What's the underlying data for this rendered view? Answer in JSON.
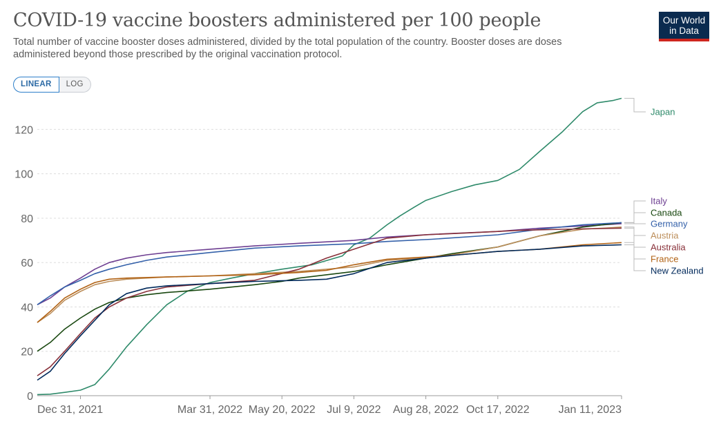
{
  "header": {
    "title": "COVID-19 vaccine boosters administered per 100 people",
    "subtitle": "Total number of vaccine booster doses administered, divided by the total population of the country. Booster doses are doses administered beyond those prescribed by the original vaccination protocol."
  },
  "logo": {
    "line1": "Our World",
    "line2": "in Data",
    "bg_color": "#0b2b4f",
    "accent_color": "#ce261e"
  },
  "controls": {
    "linear_label": "LINEAR",
    "log_label": "LOG",
    "selected": "LINEAR"
  },
  "chart_data": {
    "type": "line",
    "title": "COVID-19 vaccine boosters administered per 100 people",
    "xlabel": "",
    "ylabel": "",
    "ylim": [
      0,
      136
    ],
    "y_ticks": [
      0,
      20,
      40,
      60,
      80,
      100,
      120
    ],
    "x_ticks": [
      "Dec 31, 2021",
      "Mar 31, 2022",
      "May 20, 2022",
      "Jul 9, 2022",
      "Aug 28, 2022",
      "Oct 17, 2022",
      "Jan 11, 2023"
    ],
    "x_range": [
      "2021-12-01",
      "2023-01-11"
    ],
    "grid": "horizontal dashed",
    "legend": "right, end-of-line labels",
    "series": [
      {
        "name": "Japan",
        "color": "#2e8a6a",
        "points": [
          [
            "2021-12-01",
            0.5
          ],
          [
            "2021-12-10",
            0.7
          ],
          [
            "2021-12-20",
            1.5
          ],
          [
            "2021-12-31",
            2.5
          ],
          [
            "2022-01-10",
            5
          ],
          [
            "2022-01-20",
            12
          ],
          [
            "2022-02-01",
            22
          ],
          [
            "2022-02-15",
            32
          ],
          [
            "2022-03-01",
            41
          ],
          [
            "2022-03-15",
            47
          ],
          [
            "2022-03-31",
            51
          ],
          [
            "2022-04-15",
            53
          ],
          [
            "2022-05-01",
            55
          ],
          [
            "2022-05-20",
            57
          ],
          [
            "2022-06-10",
            59
          ],
          [
            "2022-07-01",
            63
          ],
          [
            "2022-07-09",
            68
          ],
          [
            "2022-07-20",
            71
          ],
          [
            "2022-08-01",
            77
          ],
          [
            "2022-08-10",
            81
          ],
          [
            "2022-08-20",
            85
          ],
          [
            "2022-08-28",
            88
          ],
          [
            "2022-09-15",
            92
          ],
          [
            "2022-10-01",
            95
          ],
          [
            "2022-10-17",
            97
          ],
          [
            "2022-11-01",
            102
          ],
          [
            "2022-11-15",
            110
          ],
          [
            "2022-12-01",
            119
          ],
          [
            "2022-12-15",
            128
          ],
          [
            "2022-12-25",
            132
          ],
          [
            "2023-01-05",
            133
          ],
          [
            "2023-01-11",
            134
          ]
        ]
      },
      {
        "name": "Italy",
        "color": "#6d3e91",
        "points": [
          [
            "2021-12-01",
            41
          ],
          [
            "2021-12-10",
            44
          ],
          [
            "2021-12-20",
            49
          ],
          [
            "2021-12-31",
            53
          ],
          [
            "2022-01-10",
            57
          ],
          [
            "2022-01-20",
            60
          ],
          [
            "2022-02-01",
            62
          ],
          [
            "2022-02-15",
            63.5
          ],
          [
            "2022-03-01",
            64.5
          ],
          [
            "2022-03-31",
            66
          ],
          [
            "2022-05-01",
            67.5
          ],
          [
            "2022-06-01",
            68.7
          ],
          [
            "2022-07-09",
            70
          ],
          [
            "2022-08-01",
            71.5
          ],
          [
            "2022-09-01",
            72.7
          ],
          [
            "2022-10-17",
            74
          ],
          [
            "2022-11-15",
            75.5
          ],
          [
            "2022-12-15",
            76.5
          ],
          [
            "2023-01-11",
            77.5
          ]
        ]
      },
      {
        "name": "Canada",
        "color": "#18470f",
        "points": [
          [
            "2021-12-01",
            20
          ],
          [
            "2021-12-10",
            24
          ],
          [
            "2021-12-20",
            30
          ],
          [
            "2021-12-31",
            35
          ],
          [
            "2022-01-10",
            39
          ],
          [
            "2022-01-20",
            42
          ],
          [
            "2022-02-01",
            44
          ],
          [
            "2022-02-15",
            45.5
          ],
          [
            "2022-03-01",
            46.5
          ],
          [
            "2022-03-31",
            48
          ],
          [
            "2022-05-01",
            50
          ],
          [
            "2022-05-20",
            51.5
          ],
          [
            "2022-06-01",
            53
          ],
          [
            "2022-07-09",
            56
          ],
          [
            "2022-08-01",
            59
          ],
          [
            "2022-08-28",
            62
          ],
          [
            "2022-09-15",
            64
          ],
          [
            "2022-10-17",
            67
          ],
          [
            "2022-11-15",
            72
          ],
          [
            "2022-12-15",
            76
          ],
          [
            "2023-01-11",
            78
          ]
        ]
      },
      {
        "name": "Germany",
        "color": "#3360a9",
        "points": [
          [
            "2021-12-01",
            41
          ],
          [
            "2021-12-10",
            45
          ],
          [
            "2021-12-20",
            49
          ],
          [
            "2021-12-31",
            52
          ],
          [
            "2022-01-10",
            55
          ],
          [
            "2022-01-20",
            57
          ],
          [
            "2022-02-01",
            59
          ],
          [
            "2022-02-15",
            61
          ],
          [
            "2022-03-01",
            62.5
          ],
          [
            "2022-03-31",
            64.5
          ],
          [
            "2022-05-01",
            66.5
          ],
          [
            "2022-06-01",
            67.5
          ],
          [
            "2022-07-09",
            68.5
          ],
          [
            "2022-08-01",
            69.5
          ],
          [
            "2022-09-01",
            70.5
          ],
          [
            "2022-10-17",
            72.5
          ],
          [
            "2022-11-15",
            75
          ],
          [
            "2022-12-15",
            77
          ],
          [
            "2023-01-11",
            78
          ]
        ]
      },
      {
        "name": "Austria",
        "color": "#bc8e5a",
        "points": [
          [
            "2021-12-01",
            33
          ],
          [
            "2021-12-10",
            37
          ],
          [
            "2021-12-20",
            43
          ],
          [
            "2021-12-31",
            47
          ],
          [
            "2022-01-10",
            50
          ],
          [
            "2022-01-20",
            51.5
          ],
          [
            "2022-02-01",
            52.5
          ],
          [
            "2022-03-01",
            53.5
          ],
          [
            "2022-03-31",
            54
          ],
          [
            "2022-05-01",
            55
          ],
          [
            "2022-06-01",
            56
          ],
          [
            "2022-07-09",
            58
          ],
          [
            "2022-08-01",
            61
          ],
          [
            "2022-08-28",
            62
          ],
          [
            "2022-09-15",
            63.5
          ],
          [
            "2022-10-17",
            67
          ],
          [
            "2022-11-15",
            72
          ],
          [
            "2022-12-15",
            75
          ],
          [
            "2023-01-11",
            76
          ]
        ]
      },
      {
        "name": "Australia",
        "color": "#883039",
        "points": [
          [
            "2021-12-01",
            9
          ],
          [
            "2021-12-10",
            13
          ],
          [
            "2021-12-20",
            20
          ],
          [
            "2021-12-31",
            28
          ],
          [
            "2022-01-10",
            35
          ],
          [
            "2022-01-20",
            40
          ],
          [
            "2022-02-01",
            44
          ],
          [
            "2022-02-15",
            47
          ],
          [
            "2022-03-01",
            49
          ],
          [
            "2022-03-31",
            50.5
          ],
          [
            "2022-05-01",
            52
          ],
          [
            "2022-06-01",
            57
          ],
          [
            "2022-06-20",
            62
          ],
          [
            "2022-07-09",
            66
          ],
          [
            "2022-08-01",
            71
          ],
          [
            "2022-08-28",
            72.5
          ],
          [
            "2022-10-01",
            73.5
          ],
          [
            "2022-11-01",
            74.5
          ],
          [
            "2022-12-01",
            75
          ],
          [
            "2023-01-11",
            75.5
          ]
        ]
      },
      {
        "name": "France",
        "color": "#b16214",
        "points": [
          [
            "2021-12-01",
            33
          ],
          [
            "2021-12-10",
            38
          ],
          [
            "2021-12-20",
            44
          ],
          [
            "2021-12-31",
            48
          ],
          [
            "2022-01-10",
            51
          ],
          [
            "2022-01-20",
            52.5
          ],
          [
            "2022-02-01",
            53
          ],
          [
            "2022-03-01",
            53.5
          ],
          [
            "2022-03-31",
            54
          ],
          [
            "2022-04-30",
            54.5
          ],
          [
            "2022-05-31",
            55.5
          ],
          [
            "2022-06-20",
            56.5
          ],
          [
            "2022-07-09",
            59
          ],
          [
            "2022-08-01",
            61.5
          ],
          [
            "2022-08-28",
            62.5
          ],
          [
            "2022-09-20",
            63.5
          ],
          [
            "2022-10-17",
            65
          ],
          [
            "2022-11-15",
            66
          ],
          [
            "2022-12-15",
            68
          ],
          [
            "2023-01-11",
            69
          ]
        ]
      },
      {
        "name": "New Zealand",
        "color": "#00295b",
        "points": [
          [
            "2021-12-01",
            7
          ],
          [
            "2021-12-10",
            11
          ],
          [
            "2021-12-20",
            19
          ],
          [
            "2021-12-31",
            27
          ],
          [
            "2022-01-10",
            34
          ],
          [
            "2022-01-20",
            41
          ],
          [
            "2022-02-01",
            46
          ],
          [
            "2022-02-15",
            48.5
          ],
          [
            "2022-03-01",
            49.5
          ],
          [
            "2022-03-31",
            50.5
          ],
          [
            "2022-05-01",
            51.5
          ],
          [
            "2022-06-01",
            52
          ],
          [
            "2022-06-20",
            52.5
          ],
          [
            "2022-07-09",
            55
          ],
          [
            "2022-08-01",
            60
          ],
          [
            "2022-08-28",
            62
          ],
          [
            "2022-09-20",
            63.5
          ],
          [
            "2022-10-17",
            65
          ],
          [
            "2022-11-15",
            66
          ],
          [
            "2022-12-15",
            67.5
          ],
          [
            "2023-01-11",
            68
          ]
        ]
      }
    ]
  }
}
